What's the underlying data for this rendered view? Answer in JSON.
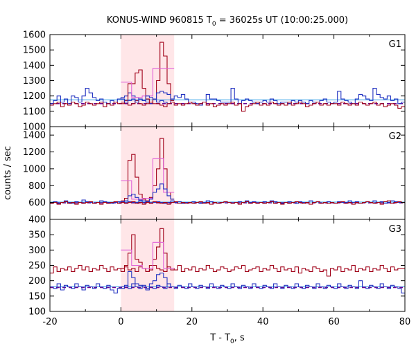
{
  "chart_data": {
    "type": "line",
    "title": "KONUS-WIND 960815 T",
    "title_sub": "0",
    "title_rest": " = 36025s UT (10:00:25.000)",
    "xlabel": "T - T",
    "xlabel_sub": "0",
    "xlabel_rest": ", s",
    "ylabel": "counts / sec",
    "xlim": [
      -20,
      80
    ],
    "x_ticks": [
      -20,
      0,
      20,
      40,
      60,
      80
    ],
    "x_tick_labels": [
      "-20",
      "0",
      "20",
      "40",
      "60",
      "80"
    ],
    "shaded_interval": [
      0,
      15
    ],
    "colors": {
      "dark_red": "#a00018",
      "pink": "#e060d8",
      "blue": "#2030c0",
      "light_blue": "#30a0e8",
      "shade": "#ffe6e8",
      "purple_dash": "#6a0090"
    },
    "panels": [
      {
        "label": "G1",
        "ylim": [
          1000,
          1600
        ],
        "y_ticks": [
          1000,
          1100,
          1200,
          1300,
          1400,
          1500,
          1600
        ],
        "y_tick_labels": [
          "1000",
          "1100",
          "1200",
          "1300",
          "1400",
          "1500",
          "1600"
        ],
        "background_level": 1150,
        "steps": [
          {
            "color": "blue",
            "bin": 1,
            "start": -20,
            "values": [
              1150,
              1170,
              1200,
              1160,
              1180,
              1150,
              1200,
              1190,
              1160,
              1200,
              1250,
              1220,
              1190,
              1170,
              1180,
              1160,
              1150,
              1170,
              1160,
              1180,
              1190,
              1200,
              1220,
              1200,
              1190,
              1180,
              1170,
              1160,
              1150,
              1180,
              1160,
              1170,
              1160,
              1150,
              1180,
              1200,
              1190,
              1210,
              1180,
              1160,
              1160,
              1150,
              1140,
              1160,
              1210,
              1180,
              1180,
              1170,
              1160,
              1160,
              1160,
              1250,
              1180,
              1150,
              1170,
              1180,
              1170,
              1160,
              1150,
              1160,
              1170,
              1160,
              1180,
              1170,
              1150,
              1160,
              1160,
              1150,
              1170,
              1160,
              1170,
              1160,
              1150,
              1170,
              1160,
              1160,
              1170,
              1180,
              1160,
              1150,
              1160,
              1230,
              1180,
              1170,
              1160,
              1150,
              1180,
              1210,
              1200,
              1180,
              1170,
              1250,
              1210,
              1190,
              1180,
              1200,
              1170,
              1180,
              1150,
              1160
            ]
          },
          {
            "color": "dark_red",
            "bin": 1,
            "start": -20,
            "values": [
              1140,
              1150,
              1160,
              1130,
              1150,
              1140,
              1160,
              1150,
              1130,
              1140,
              1160,
              1150,
              1140,
              1150,
              1160,
              1130,
              1150,
              1140,
              1160,
              1150,
              1150,
              1160,
              1140,
              1150,
              1170,
              1150,
              1140,
              1150,
              1160,
              1150,
              1150,
              1140,
              1130,
              1150,
              1160,
              1140,
              1150,
              1140,
              1150,
              1160,
              1150,
              1140,
              1150,
              1160,
              1140,
              1150,
              1130,
              1140,
              1150,
              1140,
              1150,
              1160,
              1140,
              1150,
              1100,
              1130,
              1140,
              1150,
              1160,
              1140,
              1150,
              1140,
              1160,
              1150,
              1140,
              1150,
              1140,
              1160,
              1140,
              1150,
              1160,
              1150,
              1130,
              1140,
              1150,
              1160,
              1140,
              1150,
              1140,
              1150,
              1150,
              1140,
              1160,
              1150,
              1140,
              1150,
              1140,
              1160,
              1150,
              1140,
              1150,
              1160,
              1140,
              1150,
              1130,
              1140,
              1150,
              1140,
              1120,
              1130
            ]
          },
          {
            "color": "dark_red",
            "bin": 1,
            "start": 0,
            "values": [
              1160,
              1170,
              1280,
              1280,
              1350,
              1370,
              1250,
              1180,
              1160,
              1180,
              1300,
              1550,
              1460,
              1280,
              1170
            ]
          },
          {
            "color": "pink",
            "bin": 3,
            "start": 0,
            "values": [
              1290,
              1190,
              1200,
              1380,
              1380
            ]
          },
          {
            "color": "blue",
            "bin": 1,
            "start": 0,
            "values": [
              1180,
              1160,
              1170,
              1180,
              1160,
              1180,
              1170,
              1200,
              1190,
              1180,
              1220,
              1230,
              1220,
              1210,
              1180
            ]
          }
        ],
        "flat_lines": [
          {
            "color": "light_blue",
            "value": 1175
          },
          {
            "color": "purple_dash",
            "value": 1150,
            "dashed": true
          }
        ]
      },
      {
        "label": "G2",
        "ylim": [
          400,
          1500
        ],
        "y_ticks": [
          400,
          600,
          800,
          1000,
          1200,
          1400
        ],
        "y_tick_labels": [
          "400",
          "600",
          "800",
          "1000",
          "1200",
          "1400"
        ],
        "background_level": 600,
        "steps": [
          {
            "color": "blue",
            "bin": 1,
            "start": -20,
            "values": [
              600,
              610,
              590,
              600,
              620,
              600,
              590,
              610,
              600,
              630,
              610,
              600,
              590,
              600,
              620,
              610,
              600,
              590,
              600,
              610,
              600,
              590,
              610,
              600,
              600,
              620,
              600,
              610,
              590,
              600,
              610,
              600,
              590,
              600,
              620,
              600,
              610,
              590,
              600,
              600,
              610,
              600,
              590,
              600,
              620,
              610,
              600,
              590,
              600,
              610,
              600,
              590,
              600,
              610,
              600,
              620,
              600,
              610,
              590,
              600,
              610,
              600,
              620,
              610,
              600,
              590,
              600,
              610,
              600,
              590,
              610,
              600,
              600,
              620,
              600,
              610,
              590,
              600,
              610,
              600,
              590,
              610,
              600,
              600,
              620,
              600,
              610,
              590,
              600,
              610,
              600,
              620,
              600,
              610,
              590,
              600,
              620,
              610,
              600,
              600
            ]
          },
          {
            "color": "dark_red",
            "bin": 1,
            "start": -20,
            "values": [
              590,
              600,
              580,
              600,
              610,
              590,
              600,
              580,
              600,
              590,
              600,
              610,
              590,
              600,
              580,
              600,
              590,
              600,
              610,
              590,
              600,
              590,
              600,
              610,
              590,
              600,
              580,
              600,
              590,
              610,
              600,
              590,
              600,
              580,
              600,
              610,
              590,
              600,
              590,
              600,
              590,
              600,
              610,
              590,
              600,
              580,
              600,
              590,
              600,
              610,
              600,
              590,
              600,
              580,
              600,
              610,
              590,
              600,
              590,
              600,
              590,
              600,
              610,
              590,
              600,
              580,
              600,
              590,
              600,
              610,
              600,
              590,
              600,
              580,
              600,
              610,
              590,
              600,
              590,
              600,
              590,
              600,
              610,
              590,
              600,
              580,
              600,
              590,
              600,
              610,
              600,
              590,
              600,
              580,
              610,
              620,
              590,
              600,
              610,
              600
            ]
          },
          {
            "color": "dark_red",
            "bin": 1,
            "start": 0,
            "values": [
              620,
              650,
              1100,
              1170,
              900,
              700,
              640,
              620,
              660,
              800,
              1000,
              1360,
              1000,
              720,
              640
            ]
          },
          {
            "color": "pink",
            "bin": 3,
            "start": 0,
            "values": [
              860,
              640,
              650,
              1120,
              720
            ]
          },
          {
            "color": "blue",
            "bin": 1,
            "start": 0,
            "values": [
              610,
              620,
              680,
              700,
              660,
              630,
              620,
              610,
              640,
              720,
              760,
              820,
              760,
              680,
              640
            ]
          }
        ],
        "flat_lines": [
          {
            "color": "light_blue",
            "value": 605
          },
          {
            "color": "purple_dash",
            "value": 595,
            "dashed": true
          }
        ]
      },
      {
        "label": "G3",
        "ylim": [
          100,
          400
        ],
        "y_ticks": [
          100,
          150,
          200,
          250,
          300,
          350
        ],
        "y_tick_labels": [
          "100",
          "150",
          "200",
          "250",
          "300",
          "350"
        ],
        "background_level": 235,
        "steps": [
          {
            "color": "dark_red",
            "bin": 1,
            "start": -20,
            "values": [
              225,
              245,
              230,
              240,
              235,
              245,
              230,
              240,
              250,
              235,
              245,
              230,
              240,
              235,
              250,
              240,
              230,
              245,
              235,
              240,
              230,
              245,
              235,
              240,
              230,
              245,
              240,
              230,
              235,
              250,
              240,
              235,
              230,
              245,
              240,
              235,
              250,
              230,
              240,
              235,
              245,
              230,
              240,
              235,
              250,
              240,
              230,
              235,
              245,
              240,
              230,
              235,
              245,
              240,
              250,
              230,
              235,
              240,
              245,
              230,
              240,
              235,
              250,
              240,
              230,
              245,
              235,
              240,
              230,
              245,
              225,
              240,
              235,
              230,
              245,
              240,
              230,
              235,
              215,
              240,
              235,
              245,
              230,
              240,
              235,
              250,
              230,
              240,
              235,
              245,
              230,
              240,
              235,
              250,
              240,
              230,
              245,
              235,
              240,
              240
            ]
          },
          {
            "color": "blue",
            "bin": 1,
            "start": -20,
            "values": [
              180,
              175,
              190,
              170,
              185,
              180,
              175,
              190,
              180,
              170,
              185,
              180,
              175,
              190,
              180,
              175,
              185,
              170,
              160,
              175,
              180,
              185,
              175,
              190,
              180,
              175,
              185,
              170,
              180,
              175,
              185,
              180,
              175,
              190,
              180,
              175,
              185,
              180,
              175,
              190,
              180,
              175,
              185,
              180,
              175,
              190,
              180,
              175,
              185,
              180,
              175,
              190,
              180,
              175,
              185,
              180,
              175,
              190,
              180,
              175,
              185,
              180,
              175,
              190,
              180,
              175,
              185,
              180,
              175,
              190,
              180,
              175,
              185,
              180,
              175,
              190,
              180,
              175,
              185,
              180,
              175,
              190,
              180,
              175,
              185,
              180,
              175,
              200,
              180,
              175,
              185,
              180,
              175,
              190,
              180,
              175,
              185,
              180,
              175,
              160
            ]
          },
          {
            "color": "dark_red",
            "bin": 1,
            "start": 0,
            "values": [
              240,
              250,
              290,
              350,
              270,
              260,
              240,
              230,
              250,
              270,
              310,
              370,
              290,
              240,
              235
            ]
          },
          {
            "color": "pink",
            "bin": 3,
            "start": 0,
            "values": [
              300,
              250,
              240,
              325,
              240
            ]
          },
          {
            "color": "blue",
            "bin": 1,
            "start": 0,
            "values": [
              175,
              180,
              230,
              210,
              190,
              185,
              180,
              175,
              190,
              200,
              220,
              225,
              210,
              190,
              180
            ]
          }
        ],
        "flat_lines": [
          {
            "color": "light_blue",
            "value": 180
          },
          {
            "color": "purple_dash",
            "value": 178,
            "dashed": true
          }
        ]
      }
    ]
  }
}
